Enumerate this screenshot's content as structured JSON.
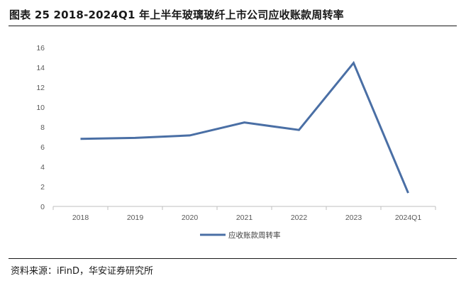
{
  "title": "图表 25 2018-2024Q1 年上半年玻璃玻纤上市公司应收账款周转率",
  "source": "资料来源：iFinD，华安证券研究所",
  "chart_data": {
    "type": "line",
    "categories": [
      "2018",
      "2019",
      "2020",
      "2021",
      "2022",
      "2023",
      "2024Q1"
    ],
    "series": [
      {
        "name": "应收账款周转率",
        "values": [
          6.8,
          6.9,
          7.15,
          8.45,
          7.7,
          14.45,
          1.35
        ],
        "color": "#4a6fa5"
      }
    ],
    "y_ticks": [
      "0",
      "2",
      "4",
      "6",
      "8",
      "10",
      "12",
      "14",
      "16"
    ],
    "ylim": [
      0,
      16
    ],
    "grid": false,
    "legend_position": "bottom-center"
  }
}
